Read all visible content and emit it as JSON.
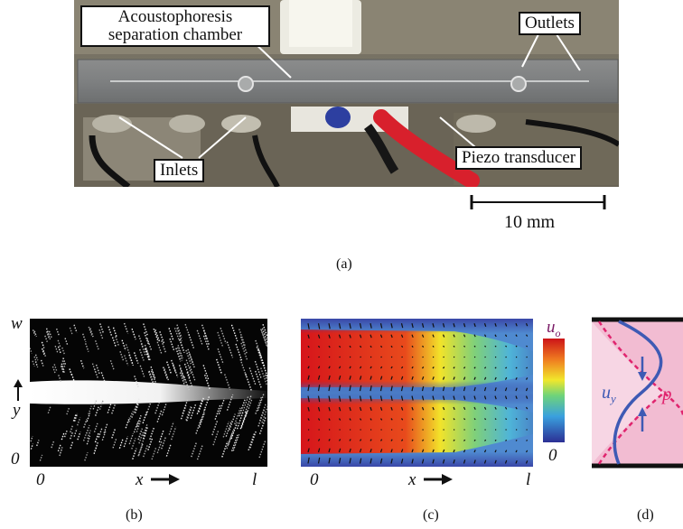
{
  "panel_a": {
    "callouts": {
      "chamber_line1": "Acoustophoresis",
      "chamber_line2": "separation chamber",
      "outlets": "Outlets",
      "inlets": "Inlets",
      "piezo": "Piezo transducer"
    },
    "scale_bar": "10 mm",
    "caption": "(a)"
  },
  "panel_b": {
    "y_top": "w",
    "y_axis": "y",
    "y_bottom": "0",
    "x_left": "0",
    "x_axis": "x",
    "x_right": "l",
    "caption": "(b)"
  },
  "panel_c": {
    "colorbar_top": "u",
    "colorbar_top_sub": "o",
    "colorbar_bottom": "0",
    "x_left": "0",
    "x_axis": "x",
    "x_right": "l",
    "caption": "(c)"
  },
  "panel_d": {
    "label_u": "u",
    "label_u_sub": "y",
    "label_p": "p",
    "caption": "(d)"
  },
  "colors": {
    "heat_high": "#d6151b",
    "heat_low": "#3a47a8",
    "pink_fill": "#f2bcd2",
    "curve_u": "#3e5ab4",
    "curve_p": "#e0246e"
  }
}
